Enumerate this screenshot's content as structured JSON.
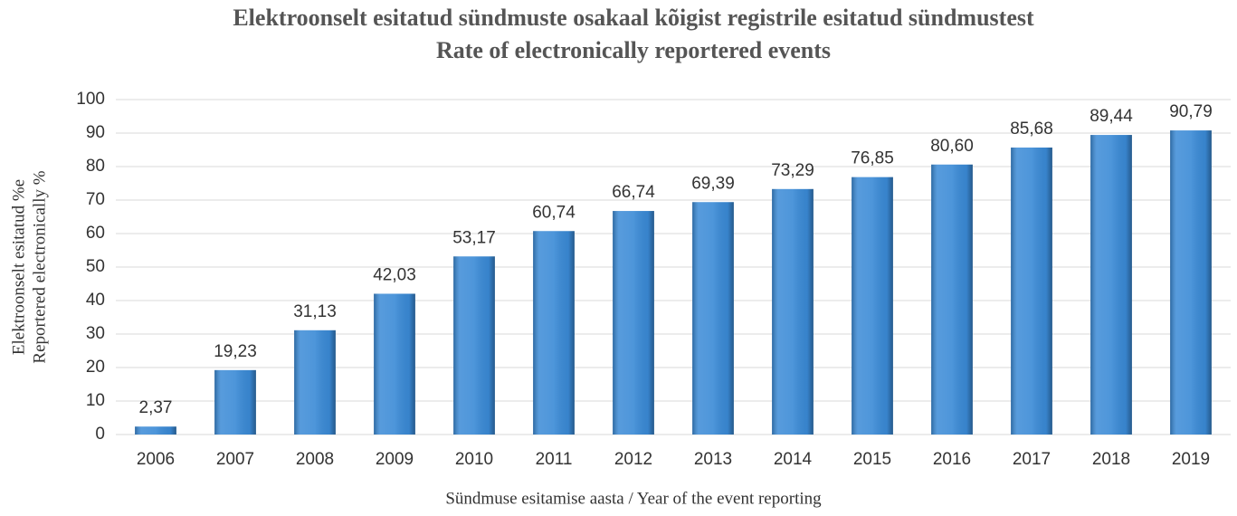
{
  "chart_data": {
    "type": "bar",
    "title": "Elektroonselt esitatud sündmuste osakaal kõigist registrile esitatud sündmustest",
    "subtitle": "Rate of electronically reportered events",
    "ylabel": [
      "Elektroonselt esitatud %e",
      "Reportered electronically  %"
    ],
    "xlabel": "Sündmuse esitamise aasta / Year of the event reporting",
    "categories": [
      "2006",
      "2007",
      "2008",
      "2009",
      "2010",
      "2011",
      "2012",
      "2013",
      "2014",
      "2015",
      "2016",
      "2017",
      "2018",
      "2019"
    ],
    "values": [
      2.37,
      19.23,
      31.13,
      42.03,
      53.17,
      60.74,
      66.74,
      69.39,
      73.29,
      76.85,
      80.6,
      85.68,
      89.44,
      90.79
    ],
    "value_labels": [
      "2,37",
      "19,23",
      "31,13",
      "42,03",
      "53,17",
      "60,74",
      "66,74",
      "69,39",
      "73,29",
      "76,85",
      "80,60",
      "85,68",
      "89,44",
      "90,79"
    ],
    "color": "#3a8ad6",
    "ylim": [
      0,
      100
    ],
    "yticks": [
      0,
      10,
      20,
      30,
      40,
      50,
      60,
      70,
      80,
      90,
      100
    ],
    "grid": true
  }
}
